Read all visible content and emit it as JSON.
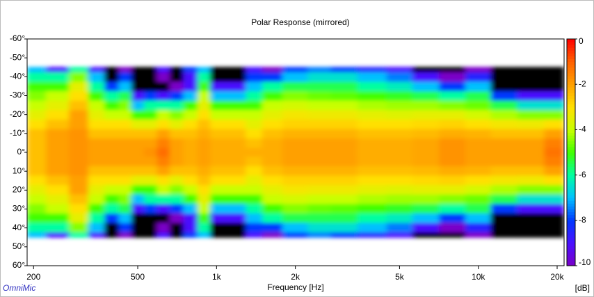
{
  "chart_data": {
    "type": "heatmap",
    "title": "Polar Response (mirrored)",
    "x_label": "Frequency [Hz]",
    "colorbar_label": "[dB]",
    "brand": "OmniMic",
    "mirrored": true,
    "x_log": true,
    "x": [
      200,
      250,
      300,
      350,
      400,
      450,
      500,
      560,
      630,
      700,
      800,
      900,
      1000,
      1200,
      1400,
      1600,
      2000,
      2500,
      3000,
      4000,
      5000,
      6300,
      8000,
      10000,
      12500,
      16000,
      20000
    ],
    "y": [
      0,
      5,
      10,
      15,
      20,
      25,
      30,
      35,
      40,
      45
    ],
    "z": [
      [
        -2.5,
        -2,
        -1.8,
        -2,
        -2,
        -2,
        -2,
        -1.8,
        -1.2,
        -2,
        -2.2,
        -2,
        -2.2,
        -2.2,
        -2.2,
        -2.2,
        -2,
        -2,
        -2,
        -2.2,
        -2.2,
        -2.1,
        -1.8,
        -2,
        -2,
        -2,
        -1.3
      ],
      [
        -2.5,
        -2,
        -1.8,
        -2,
        -2,
        -2,
        -2,
        -2,
        -1.5,
        -2,
        -2.2,
        -2,
        -2.2,
        -2.2,
        -2.5,
        -2.2,
        -2,
        -2,
        -2,
        -2.2,
        -2.2,
        -2.1,
        -1.8,
        -2,
        -2,
        -2,
        -1.5
      ],
      [
        -2.5,
        -2,
        -1.8,
        -2.5,
        -2.5,
        -2.5,
        -2.5,
        -2.5,
        -2,
        -2.5,
        -2.5,
        -2.2,
        -2.5,
        -2.5,
        -3,
        -2.5,
        -2.3,
        -2.3,
        -2.3,
        -2.5,
        -2.5,
        -2.4,
        -2.2,
        -2.3,
        -2.5,
        -2.5,
        -2
      ],
      [
        -3,
        -2.5,
        -2,
        -3,
        -3,
        -3,
        -3.5,
        -3.5,
        -3,
        -3.5,
        -3,
        -2.5,
        -3,
        -3,
        -3.5,
        -3,
        -2.8,
        -2.8,
        -2.8,
        -3,
        -3,
        -2.9,
        -2.8,
        -3,
        -3.2,
        -3.3,
        -3
      ],
      [
        -3.5,
        -3,
        -2,
        -3.5,
        -4,
        -4,
        -5,
        -5,
        -4,
        -4.5,
        -4,
        -3,
        -4,
        -4,
        -4,
        -3.5,
        -3.2,
        -3.3,
        -3.3,
        -3.5,
        -3.6,
        -3.5,
        -3.5,
        -3.8,
        -4.2,
        -4.5,
        -4.5
      ],
      [
        -4,
        -3.5,
        -2.5,
        -4,
        -5,
        -4.5,
        -7,
        -6,
        -6,
        -6,
        -5,
        -3.5,
        -5,
        -5,
        -5,
        -4,
        -3.8,
        -4,
        -4,
        -4.2,
        -4.3,
        -4.3,
        -4.5,
        -4.7,
        -5.5,
        -6.5,
        -6.5
      ],
      [
        -4.5,
        -4,
        -3,
        -5,
        -6,
        -5.5,
        -9,
        -8,
        -9,
        -8,
        -7,
        -4,
        -7,
        -7,
        -6,
        -5,
        -4.5,
        -4.7,
        -4.8,
        -5,
        -5.2,
        -5.5,
        -6,
        -5.5,
        -8,
        -9,
        -9
      ],
      [
        -5,
        -5,
        -3.5,
        -6,
        -8,
        -7,
        -12,
        -11,
        -11,
        -10,
        -9,
        -5,
        -9,
        -9,
        -7,
        -6,
        -5.5,
        -5.5,
        -5.5,
        -6,
        -6.3,
        -7,
        -8,
        -7,
        -12,
        -12,
        -11
      ],
      [
        -6,
        -6,
        -4.5,
        -7,
        -12,
        -8,
        -12,
        -12,
        -10,
        -12,
        -9,
        -6,
        -12,
        -12,
        -8,
        -8,
        -7,
        -6.5,
        -6.5,
        -7,
        -7.5,
        -9,
        -10,
        -8.5,
        -12,
        -12,
        -12
      ],
      [
        -7,
        -9,
        -6,
        -9,
        -12,
        -10,
        -12,
        -12,
        -9,
        -11,
        -8,
        -7,
        -12,
        -12,
        -9,
        -10,
        -8,
        -7.5,
        -8,
        -8.5,
        -9,
        -11,
        -12,
        -10,
        -12,
        -12,
        -12
      ]
    ],
    "xlim": [
      189,
      21260
    ],
    "xticks": [
      200,
      500,
      {
        "value": 1000,
        "label": "1k"
      },
      {
        "value": 2000,
        "label": "2k"
      },
      {
        "value": 5000,
        "label": "5k"
      },
      {
        "value": 10000,
        "label": "10k"
      },
      {
        "value": 20000,
        "label": "20k"
      }
    ],
    "ylim": [
      -60,
      60
    ],
    "yticks": [
      {
        "value": -60,
        "label": "-60°"
      },
      {
        "value": -50,
        "label": "-50°"
      },
      {
        "value": -40,
        "label": "-40°"
      },
      {
        "value": -30,
        "label": "-30°"
      },
      {
        "value": -20,
        "label": "-20°"
      },
      {
        "value": -10,
        "label": "-10°"
      },
      {
        "value": 0,
        "label": "0°"
      },
      {
        "value": 10,
        "label": "10°"
      },
      {
        "value": 20,
        "label": "20°"
      },
      {
        "value": 30,
        "label": "30°"
      },
      {
        "value": 40,
        "label": "40°"
      },
      {
        "value": 50,
        "label": "50°"
      },
      {
        "value": 60,
        "label": "60°"
      }
    ],
    "zlim": [
      -10,
      0
    ],
    "zticks": [
      0,
      -2,
      -4,
      -6,
      -8,
      -10
    ],
    "colormap": [
      "#7a00c8",
      "#4a10ff",
      "#0038ff",
      "#00c0ff",
      "#00ffa0",
      "#40ff00",
      "#c8ff00",
      "#ffe000",
      "#ffa000",
      "#ff6000",
      "#ff0000"
    ],
    "under_color": "#000000"
  }
}
